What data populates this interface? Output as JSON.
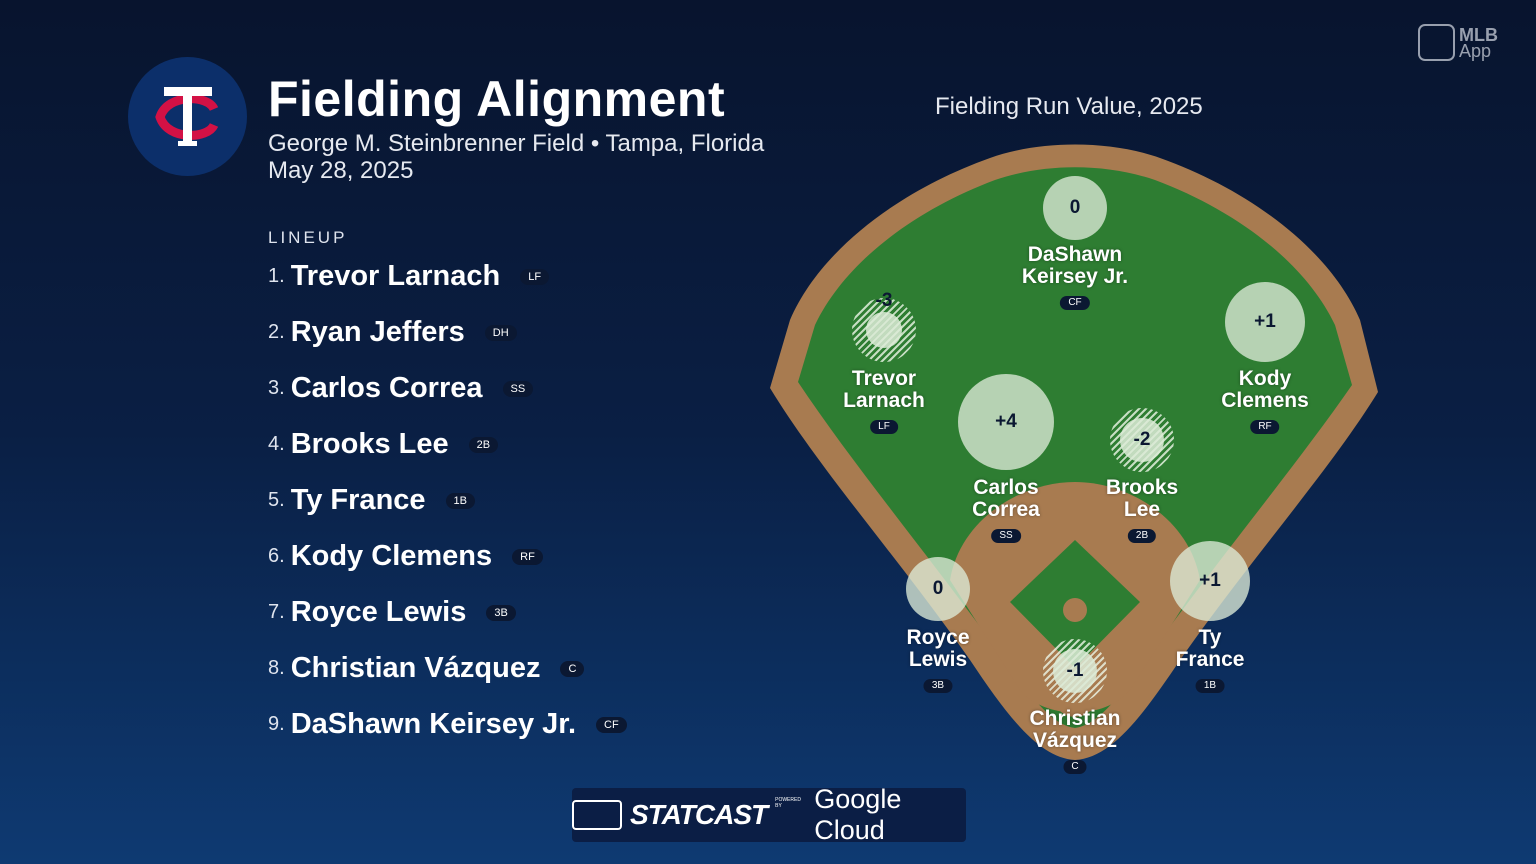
{
  "header": {
    "title": "Fielding Alignment",
    "venue": "George M. Steinbrenner Field • Tampa, Florida",
    "date": "May 28, 2025",
    "team_logo": "TC"
  },
  "brand": {
    "mlb_app": [
      "MLB",
      "App"
    ],
    "footer_statcast": "STATCAST",
    "footer_powered": "POWERED BY",
    "footer_cloud": "Google Cloud"
  },
  "lineup": {
    "heading": "LINEUP",
    "players": [
      {
        "num": "1.",
        "name": "Trevor Larnach",
        "pos": "LF"
      },
      {
        "num": "2.",
        "name": "Ryan Jeffers",
        "pos": "DH"
      },
      {
        "num": "3.",
        "name": "Carlos Correa",
        "pos": "SS"
      },
      {
        "num": "4.",
        "name": "Brooks Lee",
        "pos": "2B"
      },
      {
        "num": "5.",
        "name": "Ty France",
        "pos": "1B"
      },
      {
        "num": "6.",
        "name": "Kody Clemens",
        "pos": "RF"
      },
      {
        "num": "7.",
        "name": "Royce Lewis",
        "pos": "3B"
      },
      {
        "num": "8.",
        "name": "Christian Vázquez",
        "pos": "C"
      },
      {
        "num": "9.",
        "name": "DaShawn Keirsey Jr.",
        "pos": "CF"
      }
    ]
  },
  "field": {
    "title": "Fielding Run Value, 2025",
    "colors": {
      "grass": "#2e7d32",
      "dirt": "#a87b50"
    },
    "players": {
      "cf": {
        "l1": "DaShawn",
        "l2": "Keirsey Jr.",
        "pos": "CF",
        "value": "0"
      },
      "lf": {
        "l1": "Trevor",
        "l2": "Larnach",
        "pos": "LF",
        "value": "-3"
      },
      "rf": {
        "l1": "Kody",
        "l2": "Clemens",
        "pos": "RF",
        "value": "+1"
      },
      "ss": {
        "l1": "Carlos",
        "l2": "Correa",
        "pos": "SS",
        "value": "+4"
      },
      "2b": {
        "l1": "Brooks",
        "l2": "Lee",
        "pos": "2B",
        "value": "-2"
      },
      "3b": {
        "l1": "Royce",
        "l2": "Lewis",
        "pos": "3B",
        "value": "0"
      },
      "1b": {
        "l1": "Ty",
        "l2": "France",
        "pos": "1B",
        "value": "+1"
      },
      "c": {
        "l1": "Christian",
        "l2": "Vázquez",
        "pos": "C",
        "value": "-1"
      }
    }
  }
}
